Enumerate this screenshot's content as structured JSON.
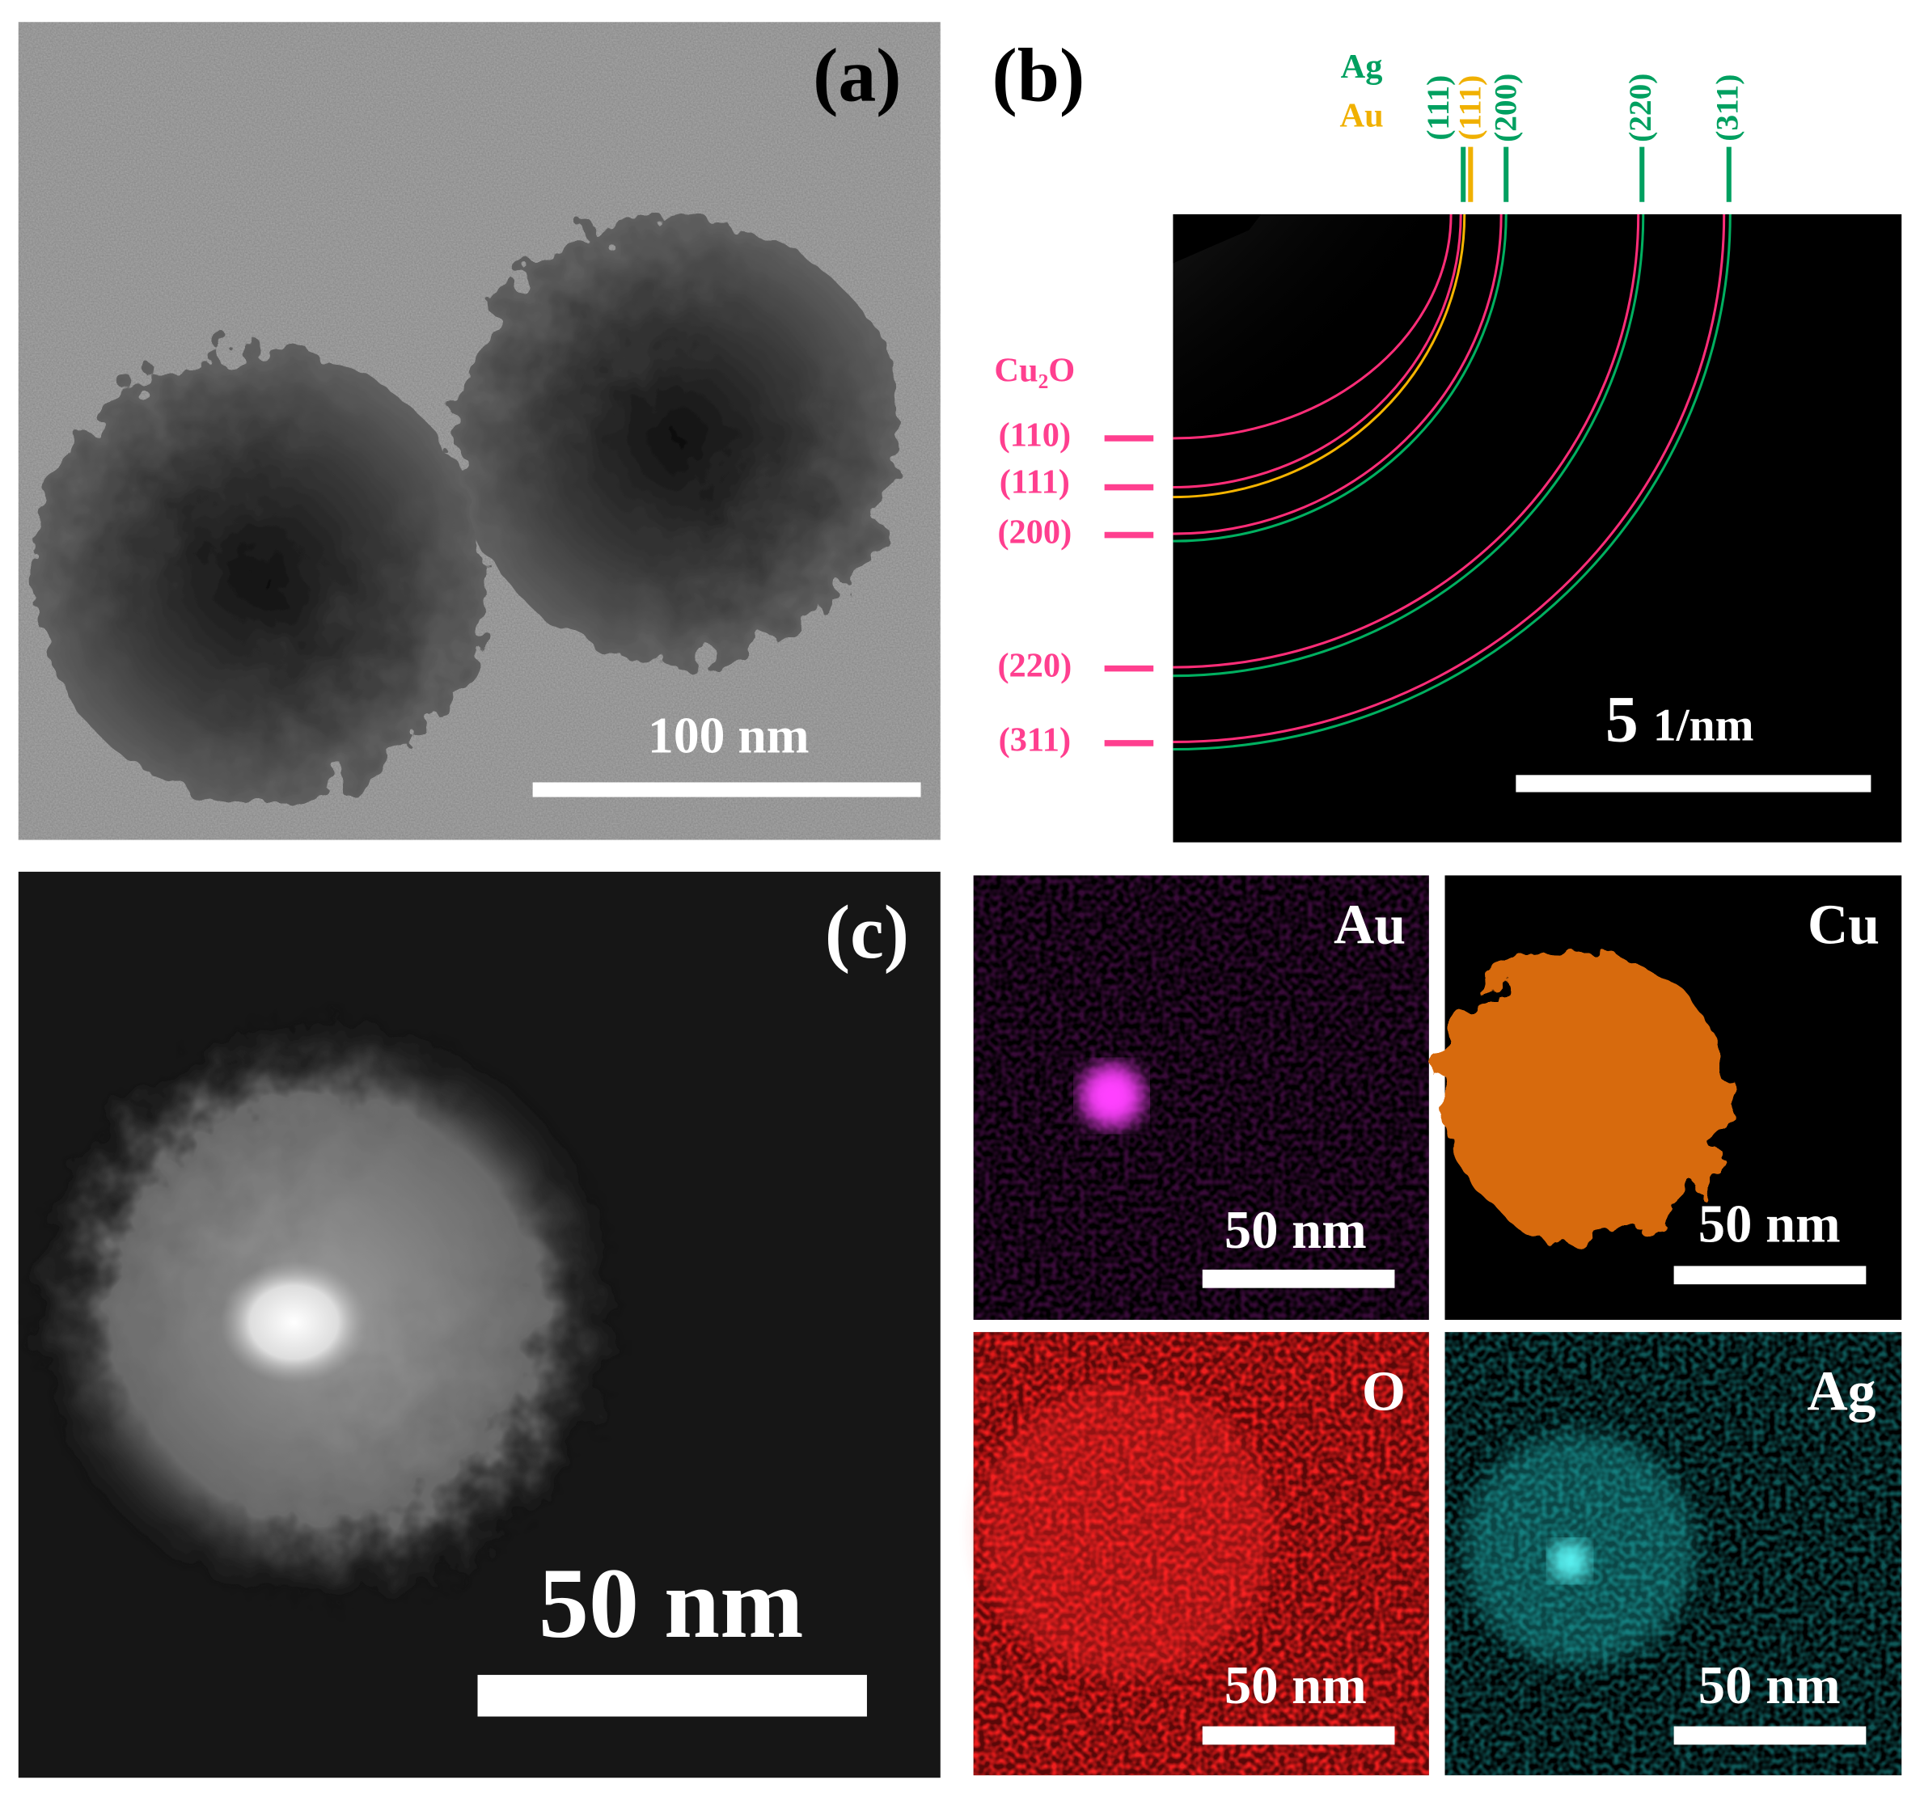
{
  "panels": [
    {
      "label": "(a)",
      "scale_bar": "100 nm"
    },
    {
      "label": "(b)",
      "legend": [
        "Ag",
        "Au"
      ],
      "top_planes": [
        "(111)",
        "(111)",
        "(200)",
        "(220)",
        "(311)"
      ],
      "cu2o": {
        "label": "Cu₂O",
        "planes": [
          "(110)",
          "(111)",
          "(200)",
          "(220)",
          "(311)"
        ]
      },
      "scale_bar_number": "5",
      "scale_bar_unit": "1/nm"
    },
    {
      "label": "(c)",
      "scale_bar": "50 nm"
    }
  ],
  "maps": [
    {
      "element": "Au",
      "scale_bar": "50 nm"
    },
    {
      "element": "Cu",
      "scale_bar": "50 nm"
    },
    {
      "element": "O",
      "scale_bar": "50 nm"
    },
    {
      "element": "Ag",
      "scale_bar": "50 nm"
    }
  ]
}
